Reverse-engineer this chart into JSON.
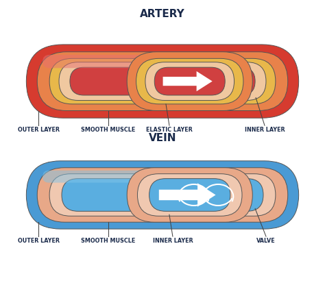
{
  "background_color": "#ffffff",
  "title_artery": "ARTERY",
  "title_vein": "VEIN",
  "title_fontsize": 11,
  "title_color": "#1a2a4a",
  "label_fontsize": 5.8,
  "label_color": "#1a2a4a",
  "label_fontweight": "bold",
  "artery_labels": [
    "OUTER LAYER",
    "SMOOTH MUSCLE",
    "ELASTIC LAYER",
    "INNER LAYER"
  ],
  "vein_labels": [
    "OUTER LAYER",
    "SMOOTH MUSCLE",
    "INNER LAYER",
    "VALVE"
  ],
  "artery_outer_color": "#d63b2f",
  "artery_outer_dark": "#b52a20",
  "artery_muscle_color": "#e8824a",
  "artery_elastic_color": "#e8b84a",
  "artery_inner_color": "#f0c8a0",
  "artery_lumen_color": "#d04040",
  "artery_lumen_dark": "#b03030",
  "vein_outer_color": "#4a9ad4",
  "vein_outer_dark": "#2a6aaa",
  "vein_muscle_color": "#e8a888",
  "vein_inner_color": "#f0c8b0",
  "vein_lumen_color": "#5aaee0",
  "vein_lumen_dark": "#3a88c8",
  "arrow_color": "#ffffff",
  "line_color": "#555555",
  "line_width": 0.7,
  "highlight_color": "#ffffff"
}
